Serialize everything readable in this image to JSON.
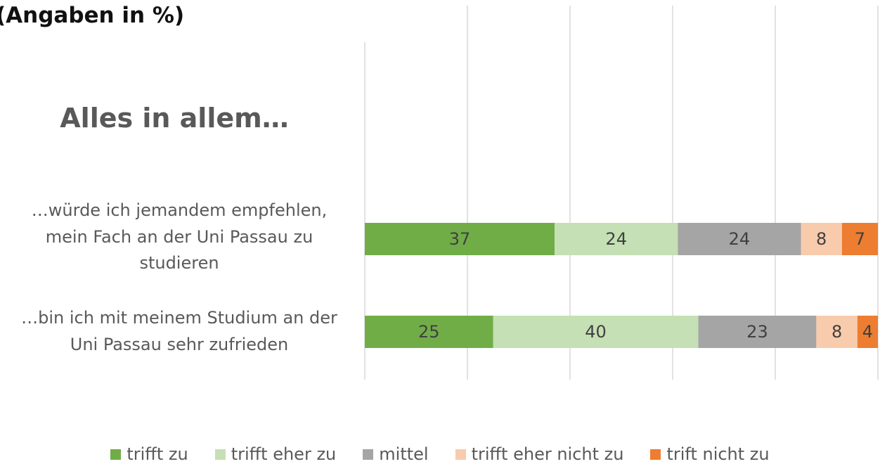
{
  "chart_data": {
    "type": "stacked-bar-horizontal",
    "title": "(Angaben in %)",
    "subtitle": "Alles in allem…",
    "categories": [
      "…würde ich jemandem empfehlen, mein Fach an der Uni Passau zu studieren",
      "…bin ich mit meinem Studium an der Uni Passau sehr zufrieden"
    ],
    "series": [
      {
        "name": "trifft zu",
        "color": "#70ad47",
        "values": [
          37,
          25
        ]
      },
      {
        "name": "trifft eher zu",
        "color": "#c5e0b4",
        "values": [
          24,
          40
        ]
      },
      {
        "name": "mittel",
        "color": "#a5a5a5",
        "values": [
          24,
          23
        ]
      },
      {
        "name": "trifft eher nicht zu",
        "color": "#f8cbad",
        "values": [
          8,
          8
        ]
      },
      {
        "name": "trift nicht zu",
        "color": "#ed7d31",
        "values": [
          7,
          4
        ]
      }
    ],
    "xlim": [
      0,
      100
    ],
    "xticks": [
      0,
      20,
      40,
      60,
      80,
      100
    ],
    "grid": true,
    "legend": "bottom"
  }
}
